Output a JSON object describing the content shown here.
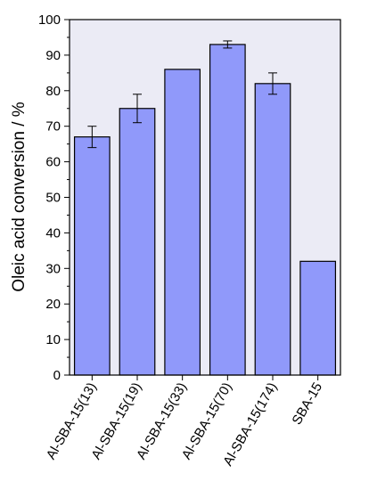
{
  "chart_data": {
    "type": "bar",
    "ylabel": "Oleic acid conversion / %",
    "xlabel": "",
    "ylim": [
      0,
      100
    ],
    "yticks": [
      0,
      10,
      20,
      30,
      40,
      50,
      60,
      70,
      80,
      90,
      100
    ],
    "minor_ytick_step": 5,
    "categories": [
      "Al-SBA-15(13)",
      "Al-SBA-15(19)",
      "Al-SBA-15(33)",
      "Al-SBA-15(70)",
      "Al-SBA-15(174)",
      "SBA-15"
    ],
    "values": [
      67,
      75,
      86,
      93,
      82,
      32
    ],
    "errors": [
      3,
      4,
      null,
      1,
      3,
      null
    ],
    "bar_color": "#9099fa",
    "plot_background": "#ebebf5",
    "grid": false
  }
}
